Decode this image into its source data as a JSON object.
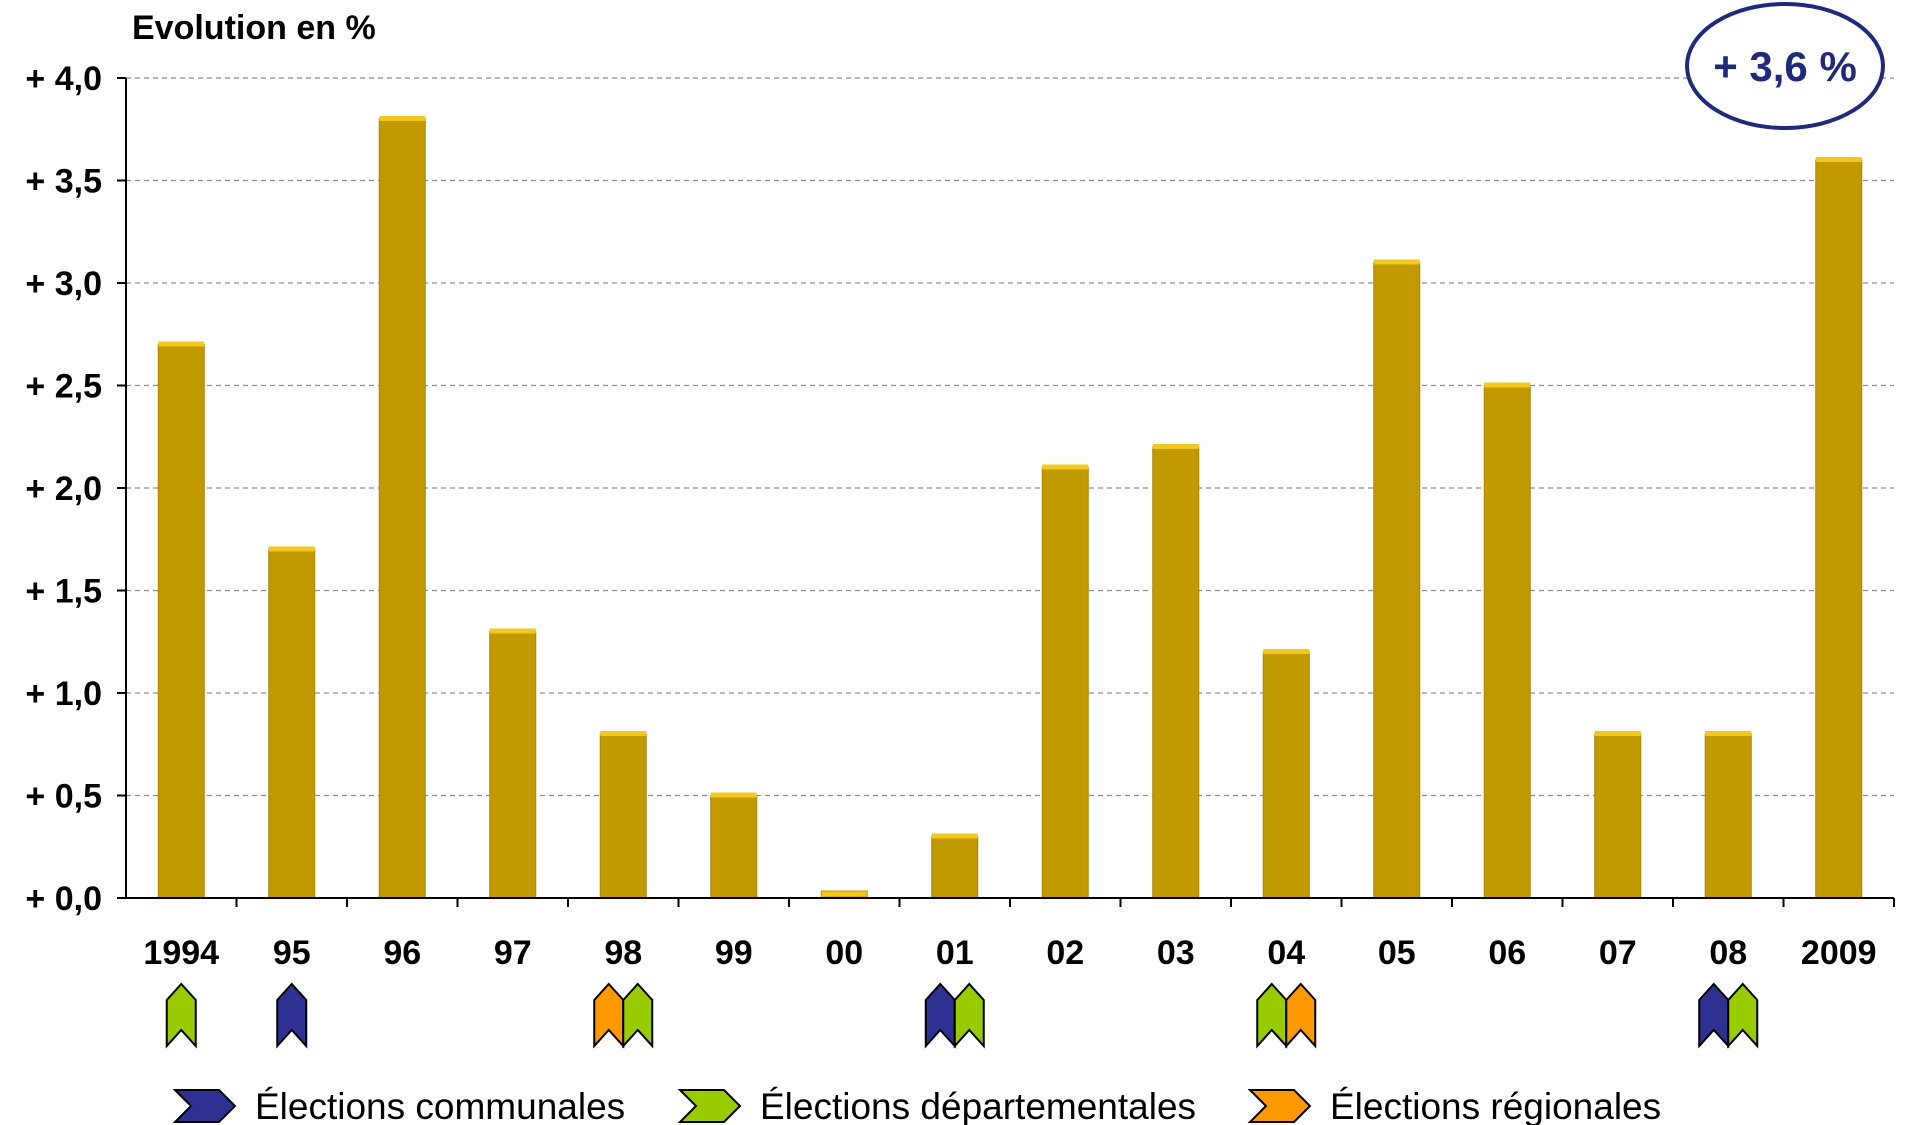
{
  "chart_data": {
    "type": "bar",
    "ylabel": "Evolution en %",
    "categories": [
      "1994",
      "95",
      "96",
      "97",
      "98",
      "99",
      "00",
      "01",
      "02",
      "03",
      "04",
      "05",
      "06",
      "07",
      "08",
      "2009"
    ],
    "values": [
      2.7,
      1.7,
      3.8,
      1.3,
      0.8,
      0.5,
      0.0,
      0.3,
      2.1,
      2.2,
      1.2,
      3.1,
      2.5,
      0.8,
      0.8,
      3.6
    ],
    "ylim": [
      0,
      4
    ],
    "yticks": [
      0,
      0.5,
      1.0,
      1.5,
      2.0,
      2.5,
      3.0,
      3.5,
      4.0
    ],
    "ytick_labels": [
      "+ 0,0",
      "+ 0,5",
      "+ 1,0",
      "+ 1,5",
      "+ 2,0",
      "+ 2,5",
      "+ 3,0",
      "+ 3,5",
      "+ 4,0"
    ],
    "grid": true,
    "bar_color": "#c09a00",
    "callout": "+ 3,6 %",
    "election_markers": [
      {
        "category": "1994",
        "types": [
          "departementales"
        ]
      },
      {
        "category": "95",
        "types": [
          "communales"
        ]
      },
      {
        "category": "98",
        "types": [
          "regionales",
          "departementales"
        ]
      },
      {
        "category": "01",
        "types": [
          "communales",
          "departementales"
        ]
      },
      {
        "category": "04",
        "types": [
          "departementales",
          "regionales"
        ]
      },
      {
        "category": "08",
        "types": [
          "communales",
          "departementales"
        ]
      }
    ],
    "legend": [
      {
        "key": "communales",
        "label": "Élections communales",
        "color": "#2e3192"
      },
      {
        "key": "departementales",
        "label": "Élections départementales",
        "color": "#99cc00"
      },
      {
        "key": "regionales",
        "label": "Élections régionales",
        "color": "#ff9900"
      }
    ],
    "legend_position": "bottom"
  }
}
